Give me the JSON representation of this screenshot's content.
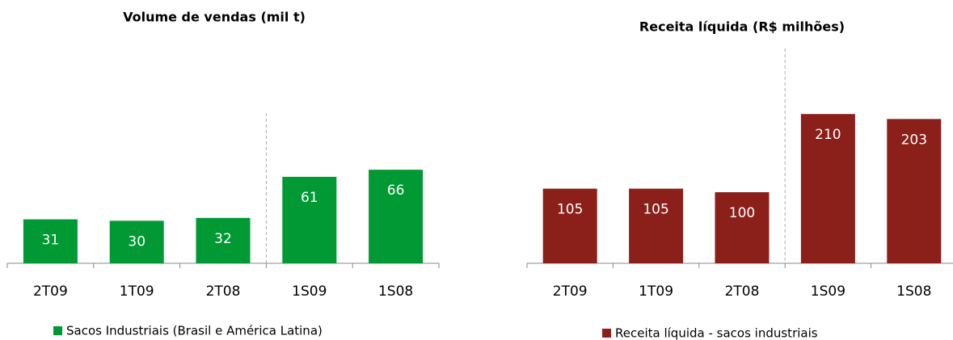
{
  "chart_data": [
    {
      "type": "bar",
      "title": "Volume de vendas (mil t)",
      "categories": [
        "2T09",
        "1T09",
        "2T08",
        "1S09",
        "1S08"
      ],
      "series": [
        {
          "name": "Sacos Industriais (Brasil e América Latina)",
          "color": "#009933",
          "values": [
            31,
            30,
            32,
            61,
            66
          ]
        }
      ]
    },
    {
      "type": "bar",
      "title": "Receita líquida (R$ milhões)",
      "categories": [
        "2T09",
        "1T09",
        "2T08",
        "1S09",
        "1S08"
      ],
      "series": [
        {
          "name": "Receita líquida - sacos industriais",
          "color": "#8b1f1a",
          "values": [
            105,
            105,
            100,
            210,
            203
          ]
        }
      ]
    }
  ]
}
